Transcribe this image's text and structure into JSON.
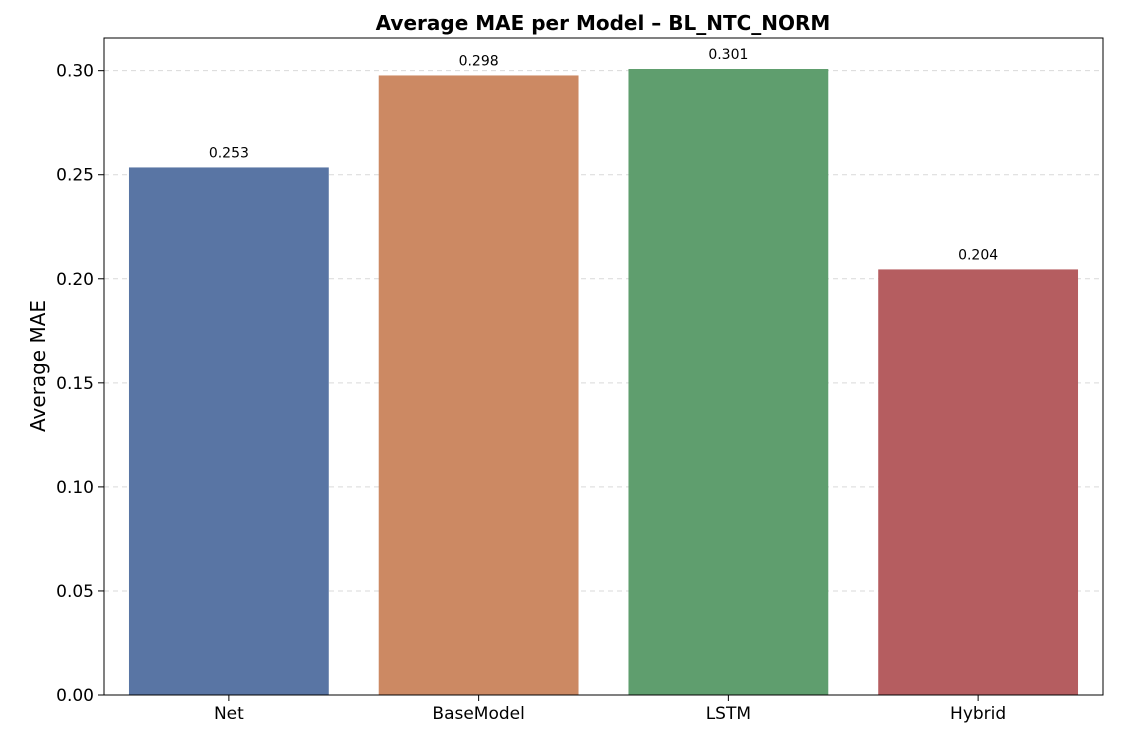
{
  "chart_data": {
    "type": "bar",
    "title": "Average MAE per Model – BL_NTC_NORM",
    "xlabel": "",
    "ylabel": "Average MAE",
    "categories": [
      "Net",
      "BaseModel",
      "LSTM",
      "Hybrid"
    ],
    "values": [
      0.2535,
      0.2977,
      0.3008,
      0.2045
    ],
    "value_labels": [
      "0.253",
      "0.298",
      "0.301",
      "0.204"
    ],
    "colors": [
      "#5975a4",
      "#cc8963",
      "#5f9e6e",
      "#b55d60"
    ],
    "ylim": [
      0,
      0.3157
    ],
    "yticks": [
      0,
      0.05,
      0.1,
      0.15,
      0.2,
      0.25,
      0.3
    ],
    "ytick_labels": [
      "0.00",
      "0.05",
      "0.10",
      "0.15",
      "0.20",
      "0.25",
      "0.30"
    ],
    "grid": "y-dashed",
    "legend": "none"
  }
}
